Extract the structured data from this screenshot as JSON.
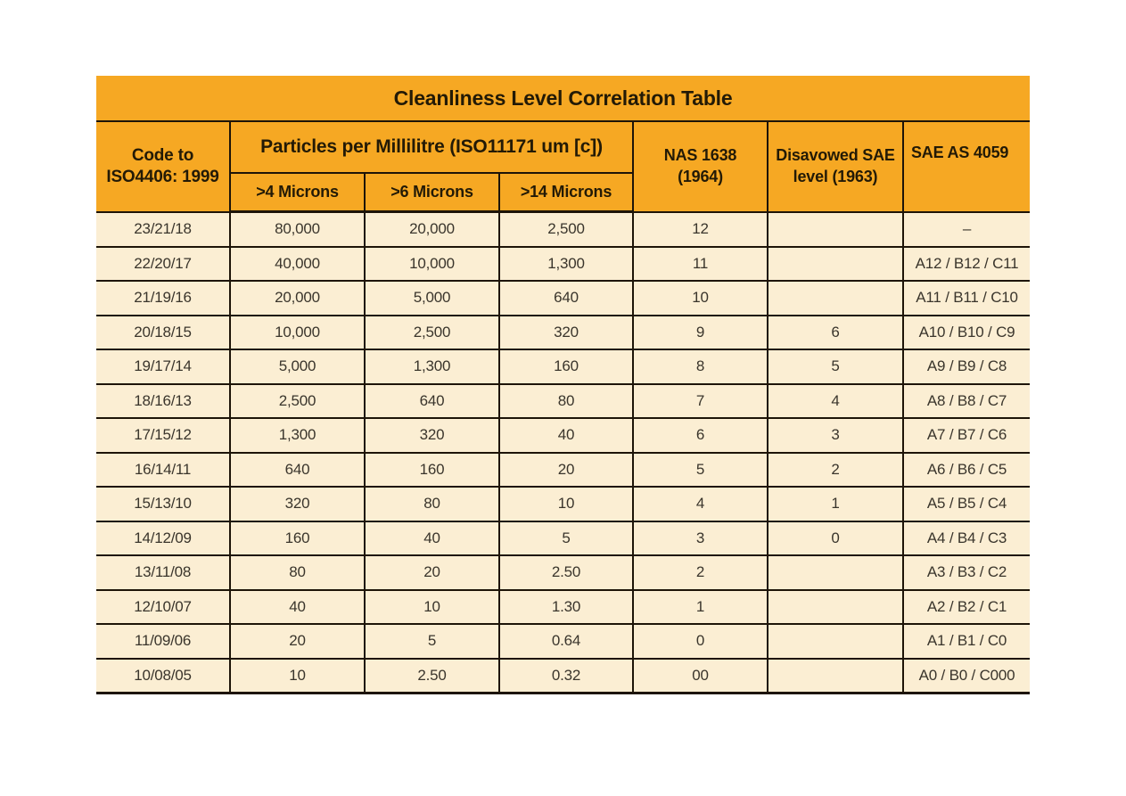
{
  "document": {
    "title": "Cleanliness Level Correlation Table",
    "header": {
      "code_col_line1": "Code to",
      "code_col_line2": "ISO4406: 1999",
      "particles_group": "Particles per Millilitre (ISO11171 um [c])",
      "micron_cols": [
        ">4 Microns",
        ">6 Microns",
        ">14 Microns"
      ],
      "nas_line1": "NAS 1638",
      "nas_line2": "(1964)",
      "sae_disavowed_line1": "Disavowed SAE",
      "sae_disavowed_line2": "level (1963)",
      "sae_as": "SAE AS 4059"
    },
    "rows": [
      [
        "23/21/18",
        "80,000",
        "20,000",
        "2,500",
        "12",
        "",
        "–"
      ],
      [
        "22/20/17",
        "40,000",
        "10,000",
        "1,300",
        "11",
        "",
        "A12 / B12 / C11"
      ],
      [
        "21/19/16",
        "20,000",
        "5,000",
        "640",
        "10",
        "",
        "A11 / B11 / C10"
      ],
      [
        "20/18/15",
        "10,000",
        "2,500",
        "320",
        "9",
        "6",
        "A10 / B10 / C9"
      ],
      [
        "19/17/14",
        "5,000",
        "1,300",
        "160",
        "8",
        "5",
        "A9 / B9 / C8"
      ],
      [
        "18/16/13",
        "2,500",
        "640",
        "80",
        "7",
        "4",
        "A8 / B8 / C7"
      ],
      [
        "17/15/12",
        "1,300",
        "320",
        "40",
        "6",
        "3",
        "A7 / B7 / C6"
      ],
      [
        "16/14/11",
        "640",
        "160",
        "20",
        "5",
        "2",
        "A6 / B6 / C5"
      ],
      [
        "15/13/10",
        "320",
        "80",
        "10",
        "4",
        "1",
        "A5 / B5 / C4"
      ],
      [
        "14/12/09",
        "160",
        "40",
        "5",
        "3",
        "0",
        "A4 / B4 / C3"
      ],
      [
        "13/11/08",
        "80",
        "20",
        "2.50",
        "2",
        "",
        "A3 / B3 / C2"
      ],
      [
        "12/10/07",
        "40",
        "10",
        "1.30",
        "1",
        "",
        "A2 / B2 / C1"
      ],
      [
        "11/09/06",
        "20",
        "5",
        "0.64",
        "0",
        "",
        "A1 / B1 / C0"
      ],
      [
        "10/08/05",
        "10",
        "2.50",
        "0.32",
        "00",
        "",
        "A0 / B0 / C000"
      ]
    ],
    "colors": {
      "header_orange": "#F6A823",
      "row_cream": "#FBEED3",
      "grid_line": "#1D1408"
    }
  }
}
